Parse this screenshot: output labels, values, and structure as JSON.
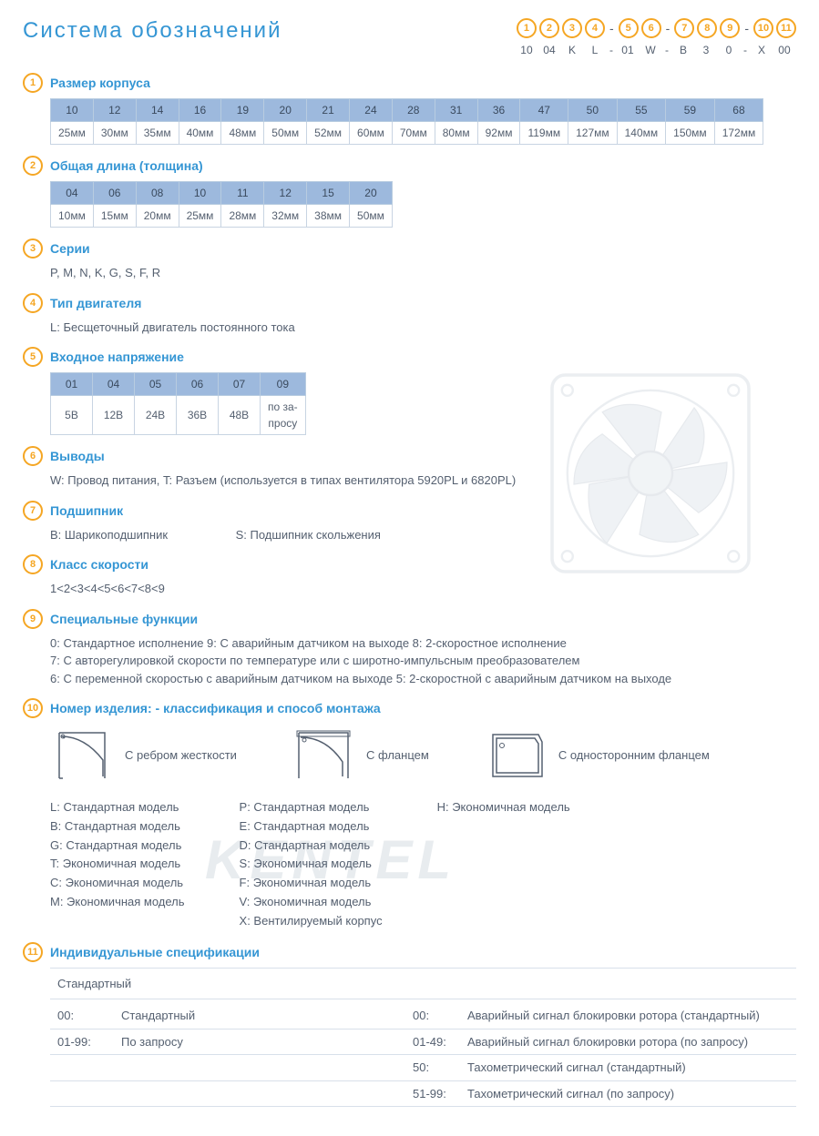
{
  "title": "Система обозначений",
  "colors": {
    "accent": "#f5a623",
    "heading": "#3596d4",
    "text": "#556070",
    "table_header_bg": "#9db9dd",
    "table_border": "#c8d4e2"
  },
  "code_positions": [
    "1",
    "2",
    "3",
    "4",
    "-",
    "5",
    "6",
    "-",
    "7",
    "8",
    "9",
    "-",
    "10",
    "11"
  ],
  "code_example": [
    "10",
    "04",
    "K",
    "L",
    "-",
    "01",
    "W",
    "-",
    "B",
    "3",
    "0",
    "-",
    "X",
    "00"
  ],
  "sections": {
    "s1": {
      "title": "Размер корпуса",
      "table": {
        "header": [
          "10",
          "12",
          "14",
          "16",
          "19",
          "20",
          "21",
          "24",
          "28",
          "31",
          "36",
          "47",
          "50",
          "55",
          "59",
          "68"
        ],
        "row": [
          "25мм",
          "30мм",
          "35мм",
          "40мм",
          "48мм",
          "50мм",
          "52мм",
          "60мм",
          "70мм",
          "80мм",
          "92мм",
          "119мм",
          "127мм",
          "140мм",
          "150мм",
          "172мм"
        ]
      }
    },
    "s2": {
      "title": "Общая длина (толщина)",
      "table": {
        "header": [
          "04",
          "06",
          "08",
          "10",
          "11",
          "12",
          "15",
          "20"
        ],
        "row": [
          "10мм",
          "15мм",
          "20мм",
          "25мм",
          "28мм",
          "32мм",
          "38мм",
          "50мм"
        ]
      }
    },
    "s3": {
      "title": "Серии",
      "text": "P, M, N, K, G, S, F, R"
    },
    "s4": {
      "title": "Тип двигателя",
      "text": "L: Бесщеточный двигатель постоянного тока"
    },
    "s5": {
      "title": "Входное напряжение",
      "table": {
        "header": [
          "01",
          "04",
          "05",
          "06",
          "07",
          "09"
        ],
        "row": [
          "5В",
          "12В",
          "24В",
          "36В",
          "48В",
          "по за-\nпросу"
        ]
      }
    },
    "s6": {
      "title": "Выводы",
      "text": "W: Провод питания, T: Разъем (используется в типах вентилятора  5920PL и 6820PL)"
    },
    "s7": {
      "title": "Подшипник",
      "text_a": "B: Шарикоподшипник",
      "text_b": "S: Подшипник скольжения"
    },
    "s8": {
      "title": "Класс скорости",
      "text": "1<2<3<4<5<6<7<8<9"
    },
    "s9": {
      "title": "Специальные функции",
      "lines": [
        "0: Стандартное исполнение   9: С аварийным датчиком на выходе   8: 2-скоростное исполнение",
        "7: С авторегулировкой скорости по температуре или с широтно-импульсным преобразователем",
        "6: С переменной скоростью с аварийным датчиком на выходе   5: 2-скоростной с аварийным датчиком на выходе"
      ]
    },
    "s10": {
      "title": "Номер изделия: - классификация  и способ монтажа",
      "mounts": [
        {
          "label": "С ребром жесткости"
        },
        {
          "label": "С фланцем"
        },
        {
          "label": "С односторонним фланцем"
        }
      ],
      "col1": [
        "L:  Стандартная модель",
        "B:  Стандартная модель",
        "G:  Стандартная модель",
        "T:  Экономичная модель",
        "C:  Экономичная модель",
        "M:  Экономичная модель"
      ],
      "col2": [
        "P:  Стандартная модель",
        "E:  Стандартная модель",
        "D:  Стандартная модель",
        "S:  Экономичная модель",
        "F:  Экономичная модель",
        "V:  Экономичная модель",
        "X:  Вентилируемый корпус"
      ],
      "col3": [
        "H:  Экономичная модель"
      ]
    },
    "s11": {
      "title": "Индивидуальные спецификации",
      "left_header": "Стандартный",
      "left": [
        {
          "code": "00:",
          "desc": "Стандартный"
        },
        {
          "code": "01-99:",
          "desc": "По запросу"
        }
      ],
      "right": [
        {
          "code": "00:",
          "desc": "Аварийный сигнал блокировки ротора (стандартный)"
        },
        {
          "code": "01-49:",
          "desc": "Аварийный сигнал блокировки ротора (по запросу)"
        },
        {
          "code": "50:",
          "desc": "Тахометрический сигнал (стандартный)"
        },
        {
          "code": "51-99:",
          "desc": "Тахометрический сигнал (по запросу)"
        }
      ]
    }
  },
  "watermark": "KENTEL"
}
